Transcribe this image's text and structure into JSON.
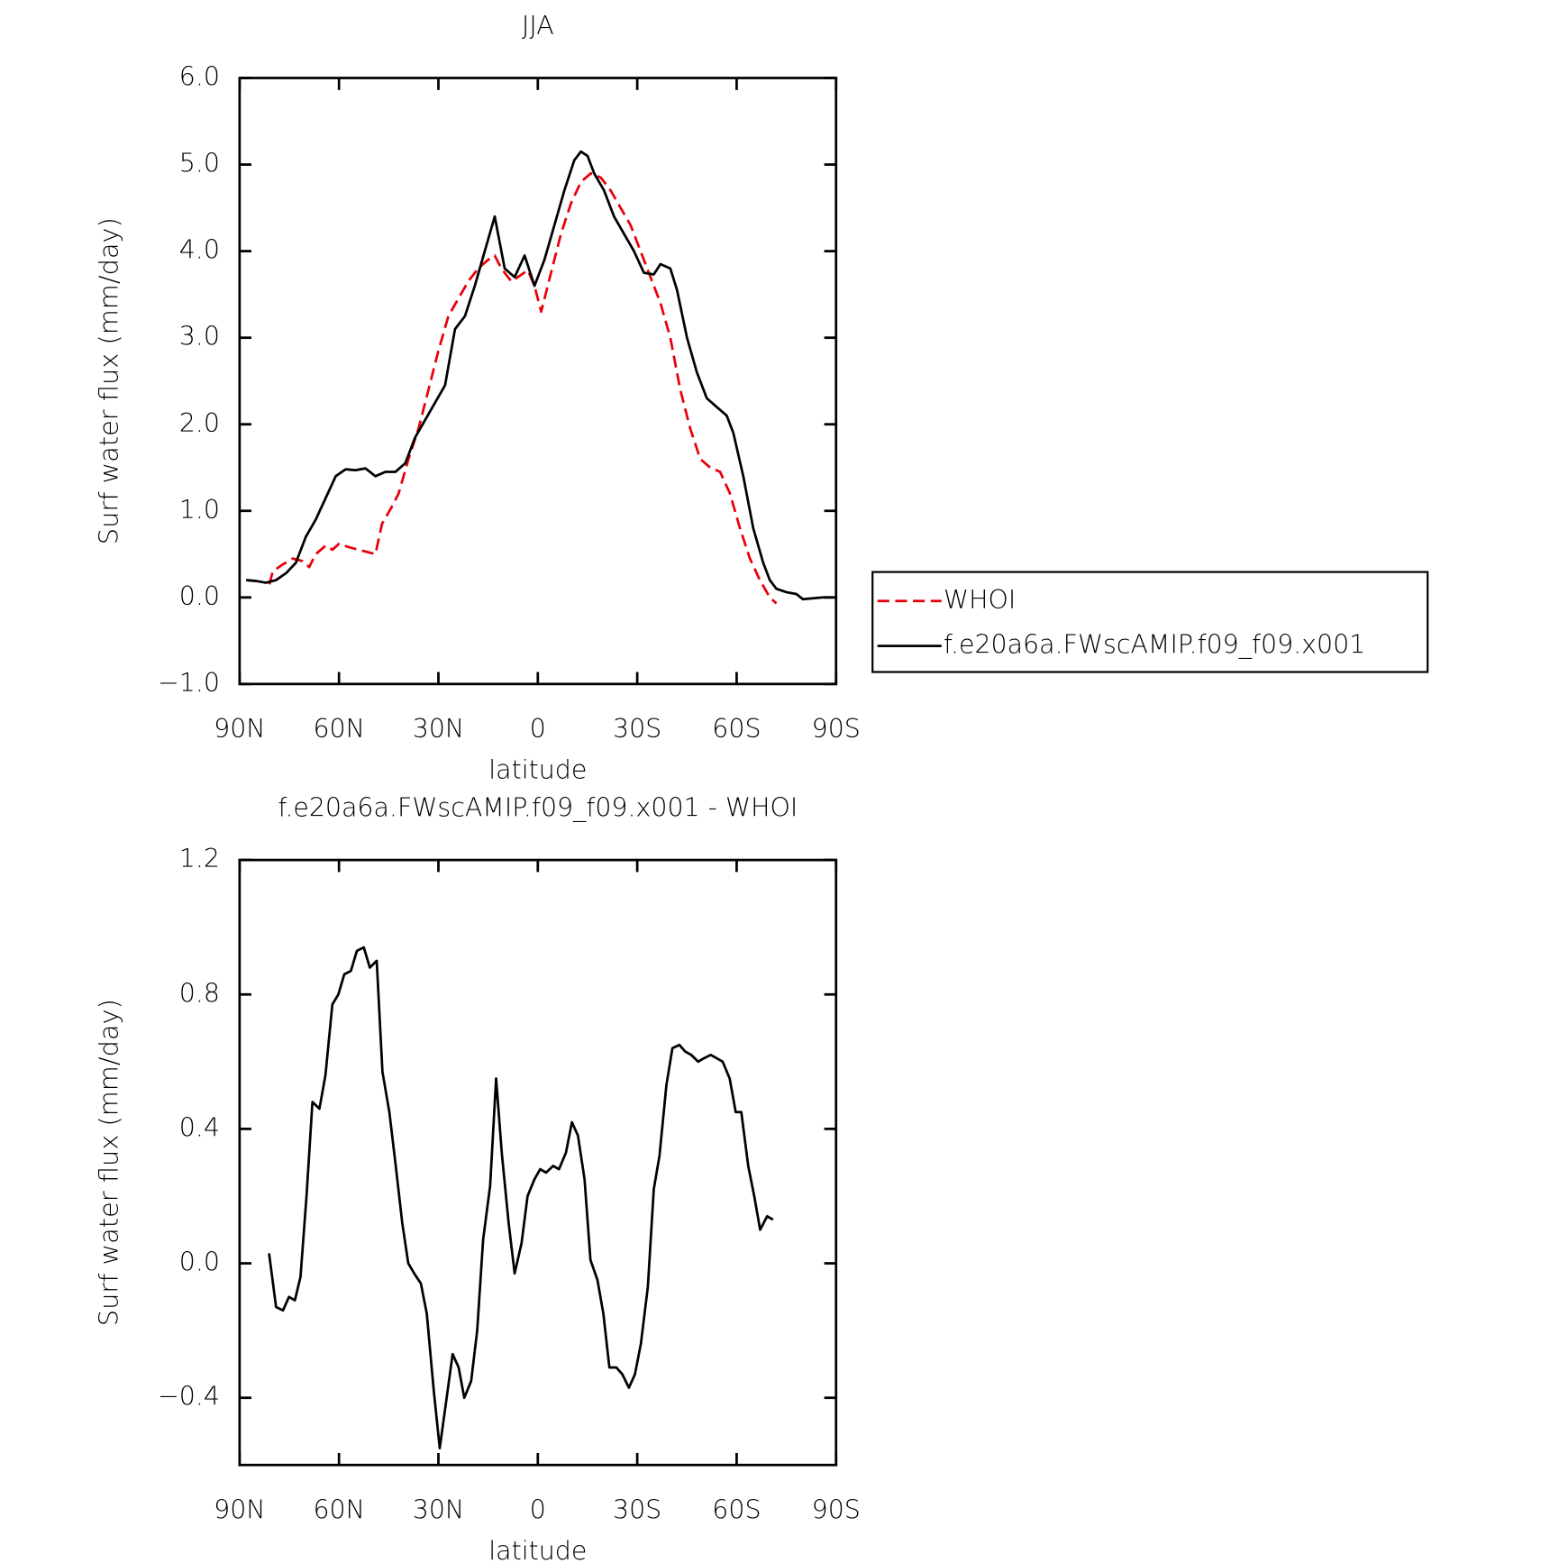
{
  "chart_data": [
    {
      "type": "line",
      "title": "JJA",
      "xlabel": "latitude",
      "ylabel": "Surf water flux (mm/day)",
      "xlim": [
        90,
        -90
      ],
      "xticks": [
        {
          "value": 90,
          "label": "90N"
        },
        {
          "value": 60,
          "label": "60N"
        },
        {
          "value": 30,
          "label": "30N"
        },
        0,
        {
          "value": -30,
          "label": "30S"
        },
        {
          "value": -60,
          "label": "60S"
        },
        {
          "value": -90,
          "label": "90S"
        }
      ],
      "ylim": [
        -1,
        6
      ],
      "yticks": [
        {
          "value": -1,
          "label": "−1.0"
        },
        {
          "value": 0,
          "label": "0.0"
        },
        {
          "value": 1,
          "label": "1.0"
        },
        {
          "value": 2,
          "label": "2.0"
        },
        {
          "value": 3,
          "label": "3.0"
        },
        {
          "value": 4,
          "label": "4.0"
        },
        {
          "value": 5,
          "label": "5.0"
        },
        {
          "value": 6,
          "label": "6.0"
        }
      ],
      "legend": "right",
      "series": [
        {
          "name": "WHOI",
          "color": "#e8000b",
          "dashed": true,
          "x": [
            81,
            80,
            77,
            74,
            71,
            69,
            67,
            64,
            62,
            60,
            57,
            54,
            51,
            49,
            47,
            44,
            42,
            39,
            36,
            33,
            30,
            27,
            24,
            21,
            18,
            15,
            13,
            11,
            8,
            6,
            3,
            1,
            -1,
            -4,
            -7,
            -10,
            -13,
            -16,
            -19,
            -22,
            -25,
            -28,
            -31,
            -34,
            -37,
            -40,
            -43,
            -46,
            -49,
            -52,
            -55,
            -58,
            -61,
            -64,
            -67,
            -70,
            -72
          ],
          "values": [
            0.15,
            0.3,
            0.38,
            0.45,
            0.42,
            0.35,
            0.5,
            0.6,
            0.55,
            0.62,
            0.58,
            0.55,
            0.52,
            0.5,
            0.85,
            1.05,
            1.2,
            1.6,
            1.95,
            2.4,
            2.85,
            3.25,
            3.45,
            3.65,
            3.8,
            3.9,
            3.95,
            3.8,
            3.65,
            3.7,
            3.78,
            3.6,
            3.3,
            3.75,
            4.2,
            4.55,
            4.8,
            4.9,
            4.85,
            4.7,
            4.5,
            4.3,
            4.0,
            3.7,
            3.4,
            3.0,
            2.4,
            1.95,
            1.6,
            1.5,
            1.45,
            1.2,
            0.8,
            0.45,
            0.2,
            0.0,
            -0.07
          ]
        },
        {
          "name": "f.e20a6a.FWscAMIP.f09_f09.x001",
          "color": "#000000",
          "dashed": false,
          "x": [
            88,
            85,
            82,
            79,
            76,
            73,
            70,
            67,
            64,
            61,
            58,
            55,
            52,
            49,
            46,
            43,
            40,
            37,
            34,
            31,
            28,
            25,
            22,
            19,
            16,
            13,
            10,
            7,
            4,
            1,
            -2,
            -5,
            -8,
            -11,
            -13,
            -15,
            -17,
            -20,
            -23,
            -26,
            -29,
            -32,
            -35,
            -37,
            -40,
            -42,
            -45,
            -48,
            -51,
            -54,
            -57,
            -59,
            -62,
            -65,
            -68,
            -70,
            -72,
            -75,
            -78,
            -80,
            -83,
            -86,
            -89
          ],
          "values": [
            0.2,
            0.19,
            0.17,
            0.2,
            0.28,
            0.4,
            0.7,
            0.9,
            1.15,
            1.4,
            1.48,
            1.47,
            1.49,
            1.4,
            1.45,
            1.45,
            1.55,
            1.85,
            2.05,
            2.25,
            2.45,
            3.1,
            3.25,
            3.6,
            4.0,
            4.4,
            3.8,
            3.7,
            3.95,
            3.6,
            3.9,
            4.3,
            4.7,
            5.05,
            5.15,
            5.1,
            4.9,
            4.7,
            4.4,
            4.2,
            4.0,
            3.75,
            3.73,
            3.85,
            3.8,
            3.55,
            3.0,
            2.6,
            2.3,
            2.2,
            2.1,
            1.9,
            1.4,
            0.8,
            0.4,
            0.2,
            0.1,
            0.06,
            0.04,
            -0.02,
            -0.01,
            0.0,
            0.0
          ]
        }
      ]
    },
    {
      "type": "line",
      "title": "f.e20a6a.FWscAMIP.f09_f09.x001 - WHOI",
      "xlabel": "latitude",
      "ylabel": "Surf water flux (mm/day)",
      "xlim": [
        90,
        -90
      ],
      "xticks": [
        {
          "value": 90,
          "label": "90N"
        },
        {
          "value": 60,
          "label": "60N"
        },
        {
          "value": 30,
          "label": "30N"
        },
        0,
        {
          "value": -30,
          "label": "30S"
        },
        {
          "value": -60,
          "label": "60S"
        },
        {
          "value": -90,
          "label": "90S"
        }
      ],
      "ylim": [
        -0.6,
        1.2
      ],
      "yticks": [
        {
          "value": -0.4,
          "label": "−0.4"
        },
        {
          "value": 0,
          "label": "0.0"
        },
        0.4,
        0.8,
        1.2
      ],
      "series": [
        {
          "color": "#000000",
          "dashed": false,
          "x": [
            81.1,
            79,
            76.9,
            75.1,
            73.3,
            71.6,
            69.8,
            68,
            65.9,
            64.1,
            62,
            60.2,
            58.4,
            56.4,
            54.6,
            52.5,
            50.7,
            48.6,
            46.9,
            44.8,
            43,
            40.9,
            39.1,
            37.3,
            35.3,
            33.5,
            31.4,
            29.6,
            27.8,
            25.7,
            23.9,
            22.2,
            20.1,
            18.3,
            16.5,
            14.4,
            12.6,
            10.9,
            8.8,
            7,
            4.9,
            3.1,
            1,
            -0.7,
            -2.5,
            -4.6,
            -6.4,
            -8.5,
            -10.3,
            -12.1,
            -14.1,
            -15.9,
            -18,
            -19.8,
            -21.6,
            -23.7,
            -25.5,
            -27.5,
            -29.3,
            -31.1,
            -33.2,
            -35,
            -36.7,
            -38.8,
            -40.6,
            -42.7,
            -44.5,
            -46.3,
            -48.4,
            -50.1,
            -52.2,
            -54,
            -55.8,
            -57.9,
            -59.7,
            -61.4,
            -63.5,
            -65.3,
            -67.1,
            -69.2,
            -71
          ],
          "values": [
            0.03,
            -0.13,
            -0.14,
            -0.1,
            -0.11,
            -0.04,
            0.2,
            0.48,
            0.46,
            0.56,
            0.77,
            0.8,
            0.86,
            0.87,
            0.93,
            0.94,
            0.88,
            0.9,
            0.57,
            0.45,
            0.3,
            0.12,
            0.0,
            -0.03,
            -0.06,
            -0.15,
            -0.38,
            -0.55,
            -0.42,
            -0.27,
            -0.31,
            -0.4,
            -0.35,
            -0.2,
            0.07,
            0.23,
            0.55,
            0.33,
            0.12,
            -0.03,
            0.06,
            0.2,
            0.25,
            0.28,
            0.27,
            0.29,
            0.28,
            0.33,
            0.42,
            0.38,
            0.25,
            0.01,
            -0.05,
            -0.15,
            -0.31,
            -0.31,
            -0.33,
            -0.37,
            -0.33,
            -0.24,
            -0.07,
            0.22,
            0.32,
            0.53,
            0.64,
            0.65,
            0.63,
            0.62,
            0.6,
            0.61,
            0.62,
            0.61,
            0.6,
            0.55,
            0.45,
            0.45,
            0.29,
            0.2,
            0.1,
            0.14,
            0.13
          ]
        }
      ]
    }
  ]
}
